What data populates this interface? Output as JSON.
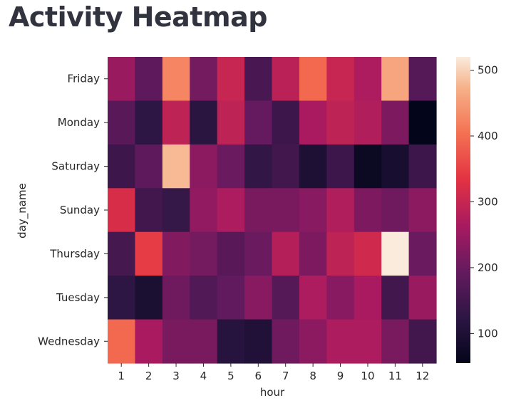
{
  "page": {
    "title": "Activity Heatmap"
  },
  "chart_data": {
    "type": "heatmap",
    "title": "Activity Heatmap",
    "xlabel": "hour",
    "ylabel": "day_name",
    "x": [
      "1",
      "2",
      "3",
      "4",
      "5",
      "6",
      "7",
      "8",
      "9",
      "10",
      "11",
      "12"
    ],
    "y": [
      "Friday",
      "Monday",
      "Saturday",
      "Sunday",
      "Thursday",
      "Tuesday",
      "Wednesday"
    ],
    "values": [
      [
        250,
        185,
        425,
        210,
        300,
        160,
        285,
        395,
        300,
        270,
        460,
        175
      ],
      [
        180,
        125,
        290,
        120,
        290,
        195,
        145,
        265,
        290,
        275,
        220,
        55
      ],
      [
        145,
        185,
        480,
        235,
        200,
        130,
        150,
        100,
        145,
        70,
        90,
        145
      ],
      [
        320,
        150,
        135,
        240,
        270,
        215,
        215,
        230,
        275,
        220,
        205,
        235
      ],
      [
        155,
        345,
        225,
        210,
        180,
        200,
        280,
        220,
        290,
        310,
        520,
        200
      ],
      [
        125,
        95,
        205,
        170,
        190,
        230,
        175,
        270,
        230,
        265,
        150,
        250
      ],
      [
        395,
        265,
        215,
        215,
        115,
        105,
        205,
        235,
        270,
        270,
        215,
        150
      ]
    ],
    "colorbar": {
      "range": [
        55,
        520
      ],
      "ticks": [
        100,
        200,
        300,
        400,
        500
      ]
    }
  }
}
